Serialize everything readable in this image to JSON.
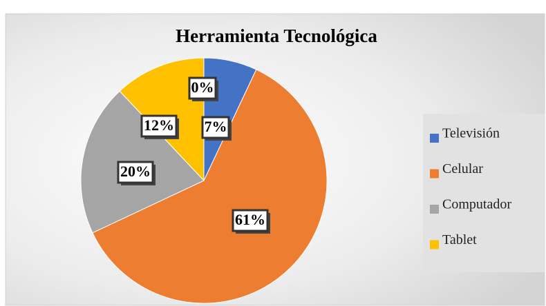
{
  "chart_data": {
    "type": "pie",
    "title": "Herramienta Tecnológica",
    "categories": [
      "Televisión",
      "Celular",
      "Computador",
      "Tablet",
      null
    ],
    "values": [
      7,
      61,
      20,
      12,
      0
    ],
    "value_labels": [
      "7%",
      "61%",
      "20%",
      "12%",
      "0%"
    ],
    "colors": [
      "#4472c4",
      "#ed7d31",
      "#a5a5a5",
      "#ffc000",
      "#5b9bd5"
    ],
    "legend": "right"
  }
}
